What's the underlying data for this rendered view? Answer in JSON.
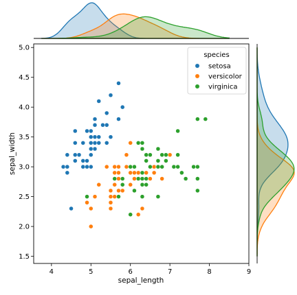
{
  "chart_data": {
    "type": "scatter",
    "xlabel": "sepal_length",
    "ylabel": "sepal_width",
    "xlim": [
      3.55,
      9.0
    ],
    "ylim": [
      1.38,
      5.06
    ],
    "xticks": [
      4,
      5,
      6,
      7,
      8,
      9
    ],
    "yticks": [
      1.5,
      2.0,
      2.5,
      3.0,
      3.5,
      4.0,
      4.5,
      5.0
    ],
    "grid": false,
    "legend": {
      "title": "species",
      "placement": "top-right"
    },
    "marginals": {
      "top": "kde of sepal_length by species",
      "right": "kde of sepal_width by species"
    },
    "series": [
      {
        "name": "setosa",
        "color": "#1f77b4",
        "points": [
          [
            4.3,
            3.0
          ],
          [
            4.4,
            2.9
          ],
          [
            4.4,
            3.0
          ],
          [
            4.4,
            3.2
          ],
          [
            4.5,
            2.3
          ],
          [
            4.6,
            3.1
          ],
          [
            4.6,
            3.2
          ],
          [
            4.6,
            3.4
          ],
          [
            4.6,
            3.6
          ],
          [
            4.7,
            3.2
          ],
          [
            4.8,
            3.0
          ],
          [
            4.8,
            3.1
          ],
          [
            4.8,
            3.4
          ],
          [
            4.9,
            3.0
          ],
          [
            4.9,
            3.1
          ],
          [
            4.9,
            3.6
          ],
          [
            5.0,
            3.0
          ],
          [
            5.0,
            3.2
          ],
          [
            5.0,
            3.3
          ],
          [
            5.0,
            3.4
          ],
          [
            5.0,
            3.5
          ],
          [
            5.0,
            3.6
          ],
          [
            5.1,
            3.3
          ],
          [
            5.1,
            3.4
          ],
          [
            5.1,
            3.5
          ],
          [
            5.1,
            3.7
          ],
          [
            5.1,
            3.8
          ],
          [
            5.2,
            3.4
          ],
          [
            5.2,
            3.5
          ],
          [
            5.2,
            4.1
          ],
          [
            5.3,
            3.7
          ],
          [
            5.4,
            3.4
          ],
          [
            5.4,
            3.7
          ],
          [
            5.4,
            3.9
          ],
          [
            5.5,
            3.5
          ],
          [
            5.5,
            4.2
          ],
          [
            5.7,
            3.8
          ],
          [
            5.7,
            4.4
          ],
          [
            5.8,
            4.0
          ]
        ]
      },
      {
        "name": "versicolor",
        "color": "#ff7f0e",
        "points": [
          [
            4.9,
            2.4
          ],
          [
            5.0,
            2.0
          ],
          [
            5.0,
            2.3
          ],
          [
            5.1,
            2.5
          ],
          [
            5.2,
            2.7
          ],
          [
            5.4,
            3.0
          ],
          [
            5.5,
            2.3
          ],
          [
            5.5,
            2.4
          ],
          [
            5.5,
            2.5
          ],
          [
            5.5,
            2.6
          ],
          [
            5.6,
            2.5
          ],
          [
            5.6,
            2.7
          ],
          [
            5.6,
            2.9
          ],
          [
            5.6,
            3.0
          ],
          [
            5.7,
            2.6
          ],
          [
            5.7,
            2.8
          ],
          [
            5.7,
            2.9
          ],
          [
            5.7,
            3.0
          ],
          [
            5.8,
            2.6
          ],
          [
            5.8,
            2.7
          ],
          [
            5.9,
            3.0
          ],
          [
            5.9,
            3.2
          ],
          [
            6.0,
            2.2
          ],
          [
            6.0,
            2.7
          ],
          [
            6.0,
            2.9
          ],
          [
            6.0,
            3.4
          ],
          [
            6.1,
            2.8
          ],
          [
            6.1,
            2.9
          ],
          [
            6.1,
            3.0
          ],
          [
            6.2,
            2.2
          ],
          [
            6.2,
            2.9
          ],
          [
            6.3,
            2.3
          ],
          [
            6.3,
            2.5
          ],
          [
            6.3,
            3.3
          ],
          [
            6.4,
            2.9
          ],
          [
            6.4,
            3.2
          ],
          [
            6.5,
            2.8
          ],
          [
            6.6,
            2.9
          ],
          [
            6.6,
            3.0
          ],
          [
            6.7,
            3.0
          ],
          [
            6.7,
            3.1
          ],
          [
            6.8,
            2.8
          ],
          [
            6.9,
            3.1
          ],
          [
            7.0,
            3.2
          ]
        ]
      },
      {
        "name": "virginica",
        "color": "#2ca02c",
        "points": [
          [
            4.9,
            2.5
          ],
          [
            5.6,
            2.8
          ],
          [
            5.7,
            2.5
          ],
          [
            5.8,
            2.7
          ],
          [
            5.8,
            2.8
          ],
          [
            6.0,
            2.2
          ],
          [
            6.0,
            3.0
          ],
          [
            6.1,
            2.6
          ],
          [
            6.1,
            3.0
          ],
          [
            6.2,
            2.8
          ],
          [
            6.2,
            3.4
          ],
          [
            6.3,
            2.5
          ],
          [
            6.3,
            2.7
          ],
          [
            6.3,
            2.8
          ],
          [
            6.3,
            2.9
          ],
          [
            6.3,
            3.3
          ],
          [
            6.3,
            3.4
          ],
          [
            6.4,
            2.7
          ],
          [
            6.4,
            2.8
          ],
          [
            6.4,
            3.1
          ],
          [
            6.4,
            3.2
          ],
          [
            6.5,
            3.0
          ],
          [
            6.5,
            3.2
          ],
          [
            6.7,
            2.5
          ],
          [
            6.7,
            3.0
          ],
          [
            6.7,
            3.1
          ],
          [
            6.7,
            3.3
          ],
          [
            6.8,
            3.0
          ],
          [
            6.8,
            3.2
          ],
          [
            6.9,
            3.1
          ],
          [
            6.9,
            3.2
          ],
          [
            7.1,
            3.0
          ],
          [
            7.2,
            3.0
          ],
          [
            7.2,
            3.2
          ],
          [
            7.2,
            3.6
          ],
          [
            7.3,
            2.9
          ],
          [
            7.4,
            2.8
          ],
          [
            7.6,
            3.0
          ],
          [
            7.7,
            2.6
          ],
          [
            7.7,
            2.8
          ],
          [
            7.7,
            3.0
          ],
          [
            7.7,
            3.8
          ],
          [
            7.9,
            3.8
          ]
        ]
      }
    ]
  }
}
